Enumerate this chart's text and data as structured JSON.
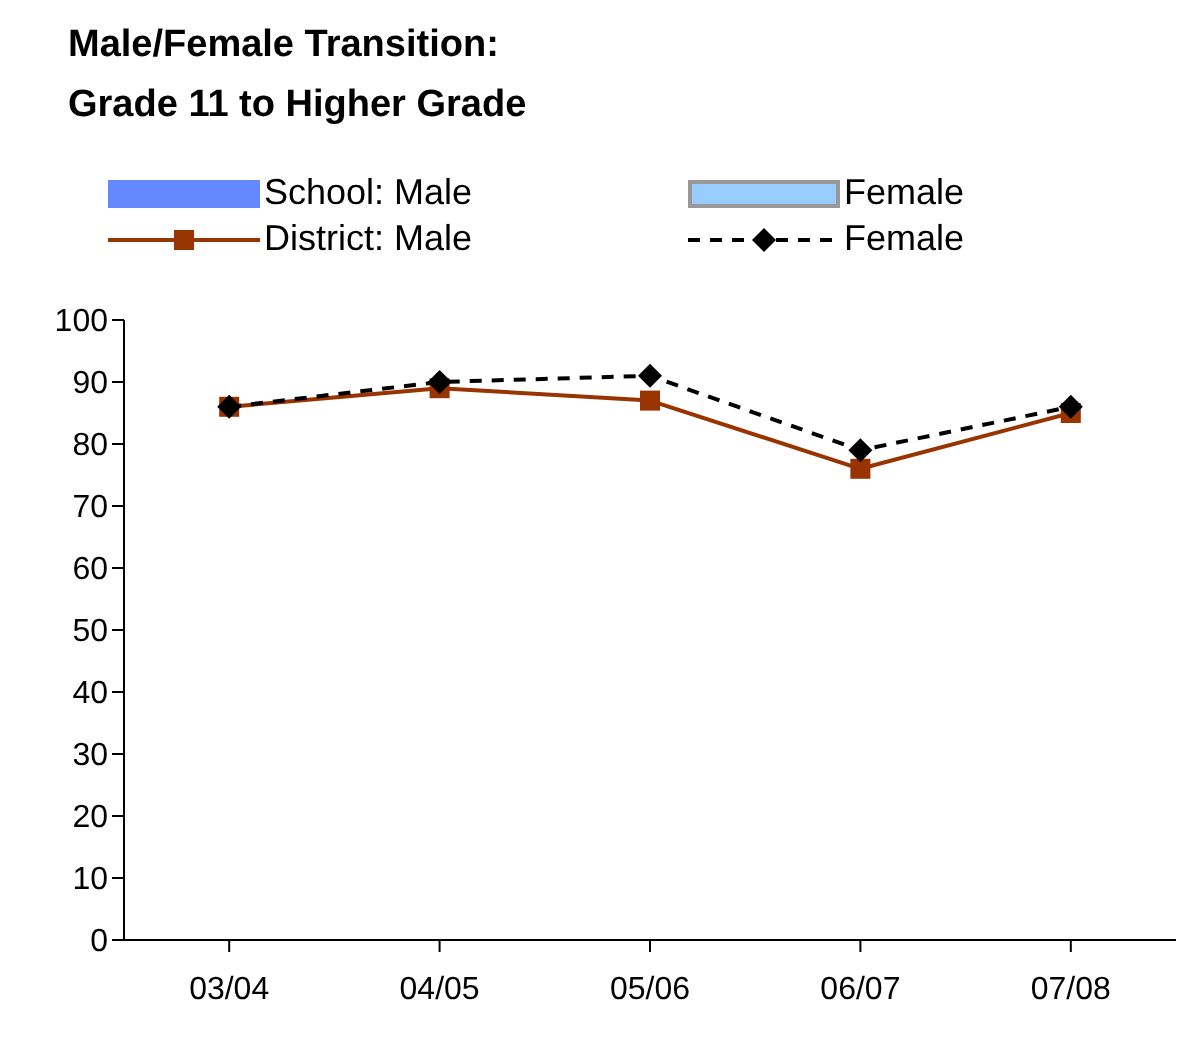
{
  "chart_data": {
    "type": "line",
    "title": "Male/Female Transition:\nGrade 11 to Higher Grade",
    "categories": [
      "03/04",
      "04/05",
      "05/06",
      "06/07",
      "07/08"
    ],
    "series": [
      {
        "name": "School: Male",
        "type": "bar",
        "color": "#6688ff",
        "values": [
          null,
          null,
          null,
          null,
          null
        ]
      },
      {
        "name": "Female",
        "type": "bar",
        "color": "#99ccff",
        "values": [
          null,
          null,
          null,
          null,
          null
        ]
      },
      {
        "name": "District: Male",
        "color": "#993300",
        "marker": "square",
        "line_style": "solid",
        "values": [
          86,
          89,
          87,
          76,
          85
        ]
      },
      {
        "name": "Female",
        "color": "#000000",
        "marker": "diamond",
        "line_style": "dashed",
        "values": [
          86,
          90,
          91,
          79,
          86
        ]
      }
    ],
    "ylim": [
      0,
      100
    ],
    "yticks": [
      0,
      10,
      20,
      30,
      40,
      50,
      60,
      70,
      80,
      90,
      100
    ],
    "grid": false,
    "legend": "top"
  }
}
